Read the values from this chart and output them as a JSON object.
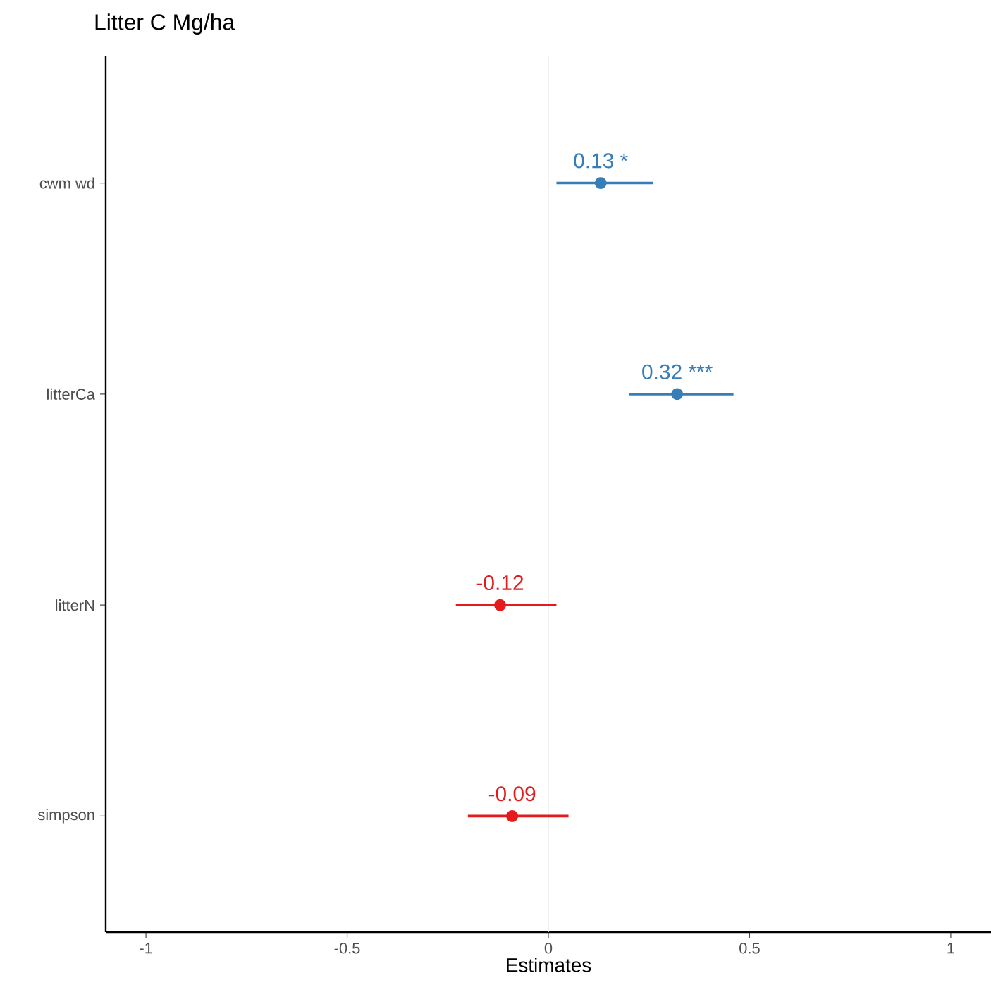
{
  "chart_data": {
    "type": "scatter",
    "orientation": "horizontal",
    "title": "Litter C Mg/ha",
    "xlabel": "Estimates",
    "categories": [
      "cwm wd",
      "litterCa",
      "litterN",
      "simpson"
    ],
    "values": [
      0.13,
      0.32,
      -0.12,
      -0.09
    ],
    "errors": [
      [
        0.02,
        0.26
      ],
      [
        0.2,
        0.46
      ],
      [
        -0.23,
        0.02
      ],
      [
        -0.2,
        0.05
      ]
    ],
    "value_labels": [
      "0.13 *",
      "0.32 ***",
      "-0.12",
      "-0.09"
    ],
    "colors": [
      "#377eb8",
      "#377eb8",
      "#e41a1c",
      "#e41a1c"
    ],
    "marker": "circle",
    "xlim": [
      -1.1,
      1.1
    ],
    "xticks": [
      -1,
      -0.5,
      0,
      0.5,
      1
    ],
    "ref_lines": [
      {
        "axis": "x",
        "value": 0,
        "color": "#ebebeb"
      }
    ],
    "grid": false
  }
}
